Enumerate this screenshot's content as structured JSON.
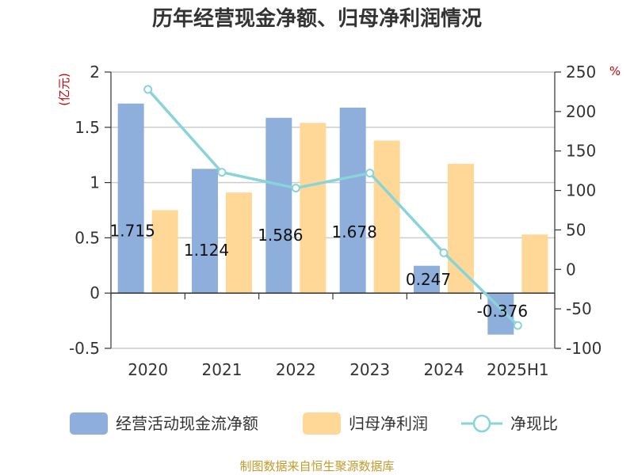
{
  "title": "历年经营现金净额、归母净利润情况",
  "source": "制图数据来自恒生聚源数据库",
  "chart_data": {
    "type": "bar",
    "categories": [
      "2020",
      "2021",
      "2022",
      "2023",
      "2024",
      "2025H1"
    ],
    "series": [
      {
        "name": "经营活动现金流净额",
        "kind": "bar",
        "axis": "left",
        "color": "#8eaedc",
        "values": [
          1.715,
          1.124,
          1.586,
          1.678,
          0.247,
          -0.376
        ],
        "labels": [
          "1.715",
          "1.124",
          "1.586",
          "1.678",
          "0.247",
          "-0.376"
        ]
      },
      {
        "name": "归母净利润",
        "kind": "bar",
        "axis": "left",
        "color": "#ffd898",
        "values": [
          0.75,
          0.91,
          1.54,
          1.38,
          1.17,
          0.53
        ]
      },
      {
        "name": "净现比",
        "kind": "line",
        "axis": "right",
        "color": "#88d4d8",
        "values": [
          228,
          123,
          103,
          122,
          21,
          -71
        ]
      }
    ],
    "yleft": {
      "unit": "(亿元)",
      "ylim": [
        -0.5,
        2
      ],
      "ticks": [
        -0.5,
        0,
        0.5,
        1,
        1.5,
        2
      ],
      "tick_labels": [
        "-0.5",
        "0",
        "0.5",
        "1",
        "1.5",
        "2"
      ]
    },
    "yright": {
      "unit": "%",
      "ylim": [
        -100,
        250
      ],
      "ticks": [
        -100,
        -50,
        0,
        50,
        100,
        150,
        200,
        250
      ],
      "tick_labels": [
        "-100",
        "-50",
        "0",
        "50",
        "100",
        "150",
        "200",
        "250"
      ]
    },
    "grid": true,
    "legend_position": "bottom"
  }
}
